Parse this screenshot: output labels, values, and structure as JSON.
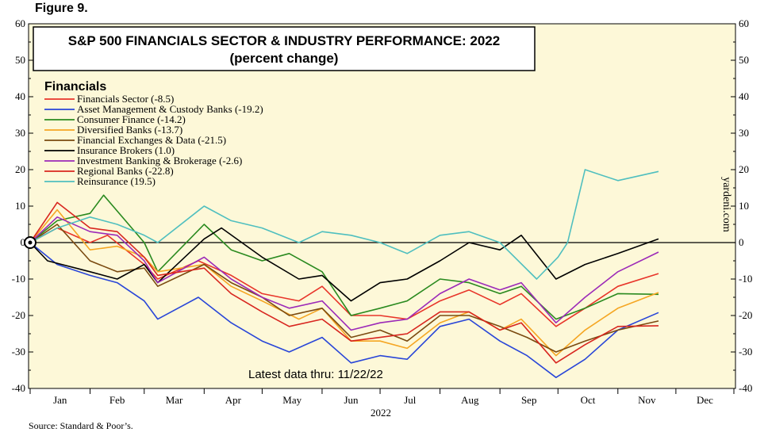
{
  "figure_label": "Figure 9.",
  "source": "Source: Standard & Poor’s.",
  "chart_data": {
    "type": "line",
    "title": "S&P 500 FINANCIALS SECTOR & INDUSTRY PERFORMANCE: 2022",
    "subtitle": "(percent change)",
    "legend_title": "Financials",
    "watermark": "yardeni.com",
    "annotation": "Latest data thru: 11/22/22",
    "xlabel": "2022",
    "ylabel": "",
    "ylim": [
      -40,
      60
    ],
    "yticks": [
      -40,
      -30,
      -20,
      -10,
      0,
      10,
      20,
      30,
      40,
      50,
      60
    ],
    "xlim": [
      "2022-01-01",
      "2022-12-31"
    ],
    "months": [
      "Jan",
      "Feb",
      "Mar",
      "Apr",
      "May",
      "Jun",
      "Jul",
      "Aug",
      "Sep",
      "Oct",
      "Nov",
      "Dec"
    ],
    "grid": false,
    "legend_position": "top-left",
    "background_color": "#fdf8d8",
    "series": [
      {
        "name": "Financials Sector (-8.5)",
        "color": "#e8352a",
        "x": [
          "2022-01-01",
          "2022-01-15",
          "2022-02-01",
          "2022-02-10",
          "2022-03-01",
          "2022-03-08",
          "2022-03-29",
          "2022-04-15",
          "2022-05-01",
          "2022-05-20",
          "2022-06-01",
          "2022-06-16",
          "2022-07-01",
          "2022-07-15",
          "2022-08-01",
          "2022-08-16",
          "2022-09-01",
          "2022-09-12",
          "2022-09-30",
          "2022-10-15",
          "2022-11-01",
          "2022-11-22"
        ],
        "y": [
          0,
          4,
          0,
          2,
          -6,
          -10,
          -5,
          -9,
          -14,
          -16,
          -12,
          -20,
          -20,
          -21,
          -16,
          -13,
          -17,
          -14,
          -23,
          -18,
          -12,
          -8.5
        ]
      },
      {
        "name": "Asset Management & Custody Banks (-19.2)",
        "color": "#2946d8",
        "x": [
          "2022-01-01",
          "2022-01-15",
          "2022-02-01",
          "2022-02-15",
          "2022-03-01",
          "2022-03-08",
          "2022-03-29",
          "2022-04-15",
          "2022-05-01",
          "2022-05-15",
          "2022-06-01",
          "2022-06-16",
          "2022-07-01",
          "2022-07-15",
          "2022-08-01",
          "2022-08-16",
          "2022-09-01",
          "2022-09-15",
          "2022-09-30",
          "2022-10-15",
          "2022-11-01",
          "2022-11-22"
        ],
        "y": [
          0,
          -6,
          -9,
          -11,
          -16,
          -21,
          -15,
          -22,
          -27,
          -30,
          -26,
          -33,
          -31,
          -32,
          -23,
          -21,
          -27,
          -31,
          -37,
          -32,
          -24,
          -19.2
        ]
      },
      {
        "name": "Consumer Finance (-14.2)",
        "color": "#2a8a1f",
        "x": [
          "2022-01-01",
          "2022-01-15",
          "2022-02-01",
          "2022-02-08",
          "2022-03-01",
          "2022-03-08",
          "2022-04-01",
          "2022-04-15",
          "2022-05-01",
          "2022-05-15",
          "2022-06-01",
          "2022-06-16",
          "2022-07-01",
          "2022-07-15",
          "2022-08-01",
          "2022-08-16",
          "2022-09-01",
          "2022-09-12",
          "2022-09-30",
          "2022-10-15",
          "2022-11-01",
          "2022-11-22"
        ],
        "y": [
          0,
          6,
          8,
          13,
          0,
          -8,
          5,
          -2,
          -5,
          -3,
          -8,
          -20,
          -18,
          -16,
          -10,
          -11,
          -14,
          -12,
          -21,
          -18,
          -14,
          -14.2
        ]
      },
      {
        "name": "Diversified Banks (-13.7)",
        "color": "#f5a623",
        "x": [
          "2022-01-01",
          "2022-01-15",
          "2022-02-01",
          "2022-02-15",
          "2022-03-01",
          "2022-03-08",
          "2022-04-01",
          "2022-04-15",
          "2022-05-01",
          "2022-05-20",
          "2022-06-01",
          "2022-06-16",
          "2022-07-01",
          "2022-07-15",
          "2022-08-01",
          "2022-08-16",
          "2022-09-01",
          "2022-09-12",
          "2022-09-30",
          "2022-10-15",
          "2022-11-01",
          "2022-11-22"
        ],
        "y": [
          0,
          9,
          -2,
          -1,
          -4,
          -8,
          -6,
          -12,
          -16,
          -21,
          -18,
          -27,
          -27,
          -29,
          -22,
          -19,
          -24,
          -21,
          -31,
          -24,
          -18,
          -13.7
        ]
      },
      {
        "name": "Financial Exchanges & Data (-21.5)",
        "color": "#7a4a10",
        "x": [
          "2022-01-01",
          "2022-01-15",
          "2022-02-01",
          "2022-02-15",
          "2022-03-01",
          "2022-03-08",
          "2022-04-01",
          "2022-04-15",
          "2022-05-01",
          "2022-05-15",
          "2022-06-01",
          "2022-06-16",
          "2022-07-01",
          "2022-07-15",
          "2022-08-01",
          "2022-08-16",
          "2022-09-01",
          "2022-09-15",
          "2022-09-30",
          "2022-10-15",
          "2022-11-01",
          "2022-11-22"
        ],
        "y": [
          0,
          5,
          -5,
          -8,
          -7,
          -12,
          -6,
          -11,
          -15,
          -20,
          -18,
          -26,
          -24,
          -27,
          -20,
          -20,
          -23,
          -26,
          -30,
          -27,
          -24,
          -21.5
        ]
      },
      {
        "name": "Insurance Brokers (1.0)",
        "color": "#000000",
        "x": [
          "2022-01-01",
          "2022-01-10",
          "2022-02-01",
          "2022-02-15",
          "2022-03-01",
          "2022-03-08",
          "2022-04-01",
          "2022-04-10",
          "2022-05-01",
          "2022-05-20",
          "2022-06-01",
          "2022-06-16",
          "2022-07-01",
          "2022-07-15",
          "2022-08-01",
          "2022-08-16",
          "2022-09-01",
          "2022-09-12",
          "2022-09-30",
          "2022-10-15",
          "2022-11-01",
          "2022-11-22"
        ],
        "y": [
          0,
          -5,
          -8,
          -10,
          -6,
          -11,
          1,
          4,
          -4,
          -10,
          -9,
          -16,
          -11,
          -10,
          -5,
          0,
          -2,
          2,
          -10,
          -6,
          -3,
          1.0
        ]
      },
      {
        "name": "Investment Banking & Brokerage (-2.6)",
        "color": "#9c2ab8",
        "x": [
          "2022-01-01",
          "2022-01-15",
          "2022-02-01",
          "2022-02-15",
          "2022-03-01",
          "2022-03-08",
          "2022-04-01",
          "2022-04-15",
          "2022-05-01",
          "2022-05-15",
          "2022-06-01",
          "2022-06-16",
          "2022-07-01",
          "2022-07-15",
          "2022-08-01",
          "2022-08-16",
          "2022-09-01",
          "2022-09-12",
          "2022-09-30",
          "2022-10-15",
          "2022-11-01",
          "2022-11-22"
        ],
        "y": [
          0,
          7,
          3,
          2,
          -5,
          -11,
          -4,
          -10,
          -15,
          -18,
          -16,
          -24,
          -22,
          -21,
          -14,
          -10,
          -13,
          -11,
          -22,
          -15,
          -8,
          -2.6
        ]
      },
      {
        "name": "Regional Banks (-22.8)",
        "color": "#d8261f",
        "x": [
          "2022-01-01",
          "2022-01-15",
          "2022-02-01",
          "2022-02-15",
          "2022-03-01",
          "2022-03-08",
          "2022-04-01",
          "2022-04-15",
          "2022-05-01",
          "2022-05-15",
          "2022-06-01",
          "2022-06-16",
          "2022-07-01",
          "2022-07-15",
          "2022-08-01",
          "2022-08-16",
          "2022-09-01",
          "2022-09-12",
          "2022-09-30",
          "2022-10-15",
          "2022-11-01",
          "2022-11-22"
        ],
        "y": [
          0,
          11,
          4,
          3,
          -4,
          -9,
          -7,
          -14,
          -19,
          -23,
          -21,
          -27,
          -26,
          -25,
          -19,
          -19,
          -24,
          -22,
          -33,
          -28,
          -23,
          -22.8
        ]
      },
      {
        "name": "Reinsurance (19.5)",
        "color": "#4fbfbf",
        "x": [
          "2022-01-01",
          "2022-01-15",
          "2022-02-01",
          "2022-02-15",
          "2022-03-01",
          "2022-03-08",
          "2022-04-01",
          "2022-04-15",
          "2022-05-01",
          "2022-05-20",
          "2022-06-01",
          "2022-06-16",
          "2022-07-01",
          "2022-07-15",
          "2022-08-01",
          "2022-08-16",
          "2022-09-01",
          "2022-09-20",
          "2022-10-01",
          "2022-10-06",
          "2022-10-15",
          "2022-11-01",
          "2022-11-22"
        ],
        "y": [
          0,
          4,
          7,
          5,
          2,
          0,
          10,
          6,
          4,
          0,
          3,
          2,
          0,
          -3,
          2,
          3,
          0,
          -10,
          -4,
          0,
          20,
          17,
          19.5
        ]
      }
    ]
  }
}
